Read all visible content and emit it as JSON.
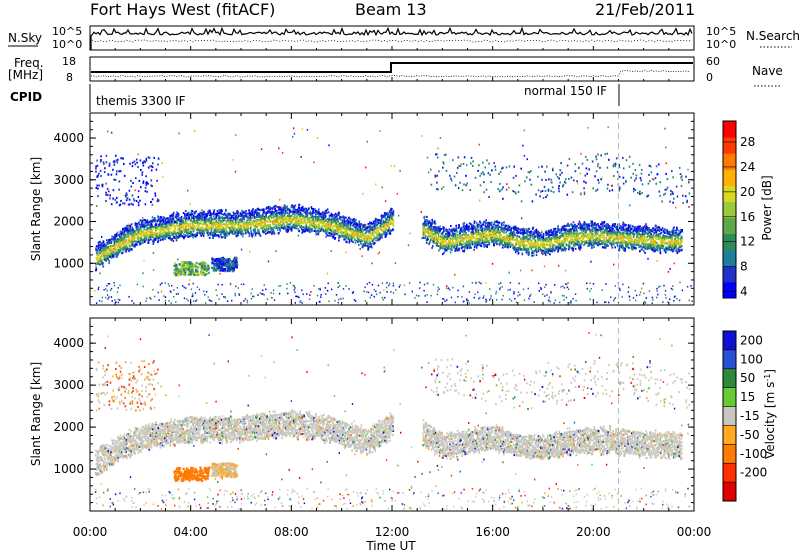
{
  "header": {
    "station": "Fort Hays West (fitACF)",
    "beam": "Beam 13",
    "date": "21/Feb/2011"
  },
  "top_panels": {
    "nsky_label": "N.Sky",
    "nsky_ticks": [
      "10^5",
      "10^0"
    ],
    "nsearch_label": "N.Search",
    "nsearch_ticks": [
      "10^5",
      "10^0"
    ],
    "freq_label": "Freq.",
    "freq_unit": "[MHz]",
    "freq_ticks": [
      "18",
      "8"
    ],
    "nave_label": "Nave",
    "nave_ticks": [
      "60",
      "0"
    ],
    "cpid_label": "CPID",
    "cpid_segments": [
      {
        "label": "themis 3300 IF",
        "start_hour": 0
      },
      {
        "label": "normal 150 IF",
        "start_hour": 21
      }
    ]
  },
  "chart_data": [
    {
      "type": "scatter",
      "panel": "power",
      "xlabel": "",
      "ylabel": "Slant Range [km]",
      "xlim": [
        0,
        24
      ],
      "ylim": [
        0,
        4600
      ],
      "yticks": [
        1000,
        2000,
        3000,
        4000
      ],
      "colorbar": {
        "label": "Power [dB]",
        "ticks": [
          "28",
          "24",
          "20",
          "16",
          "12",
          "8",
          "4"
        ],
        "colors": [
          "#0000ff",
          "#2030c8",
          "#1e7f9a",
          "#2e8b57",
          "#5fa84a",
          "#9ac93a",
          "#d8d820",
          "#ffb000",
          "#ff7a00",
          "#ff3a00",
          "#ff0000"
        ]
      },
      "bands": [
        {
          "x": [
            0.2,
            1.0,
            2.0,
            4.0,
            6.0,
            8.0,
            9.5,
            11.0,
            12.0
          ],
          "y": [
            1200,
            1500,
            1800,
            2000,
            2000,
            2150,
            2000,
            1700,
            2100
          ]
        },
        {
          "x": [
            13.2,
            14.0,
            15.0,
            16.0,
            17.0,
            18.0,
            19.0,
            20.0,
            21.0,
            22.0,
            23.5
          ],
          "y": [
            1900,
            1600,
            1700,
            1800,
            1600,
            1550,
            1700,
            1750,
            1700,
            1650,
            1600
          ]
        }
      ],
      "patches": [
        {
          "x": 4.0,
          "y": 900,
          "level": "high"
        },
        {
          "x": 5.3,
          "y": 1000,
          "level": "low"
        }
      ]
    },
    {
      "type": "scatter",
      "panel": "velocity",
      "xlabel": "Time UT",
      "ylabel": "Slant Range [km]",
      "xlim": [
        0,
        24
      ],
      "ylim": [
        0,
        4600
      ],
      "yticks": [
        1000,
        2000,
        3000,
        4000
      ],
      "xticks": [
        "00:00",
        "04:00",
        "08:00",
        "12:00",
        "16:00",
        "20:00",
        "00:00"
      ],
      "colorbar": {
        "label": "Velocity [m s",
        "label_sup": "-1",
        "label_end": "]",
        "ticks": [
          "200",
          "100",
          "50",
          "15",
          "-15",
          "-50",
          "-100",
          "-200"
        ],
        "colors": [
          "#1010d0",
          "#2a4fd8",
          "#2d8a3a",
          "#66cc33",
          "#c8c8c0",
          "#ffaa20",
          "#ff7a00",
          "#ff3000",
          "#e00000"
        ]
      }
    }
  ]
}
